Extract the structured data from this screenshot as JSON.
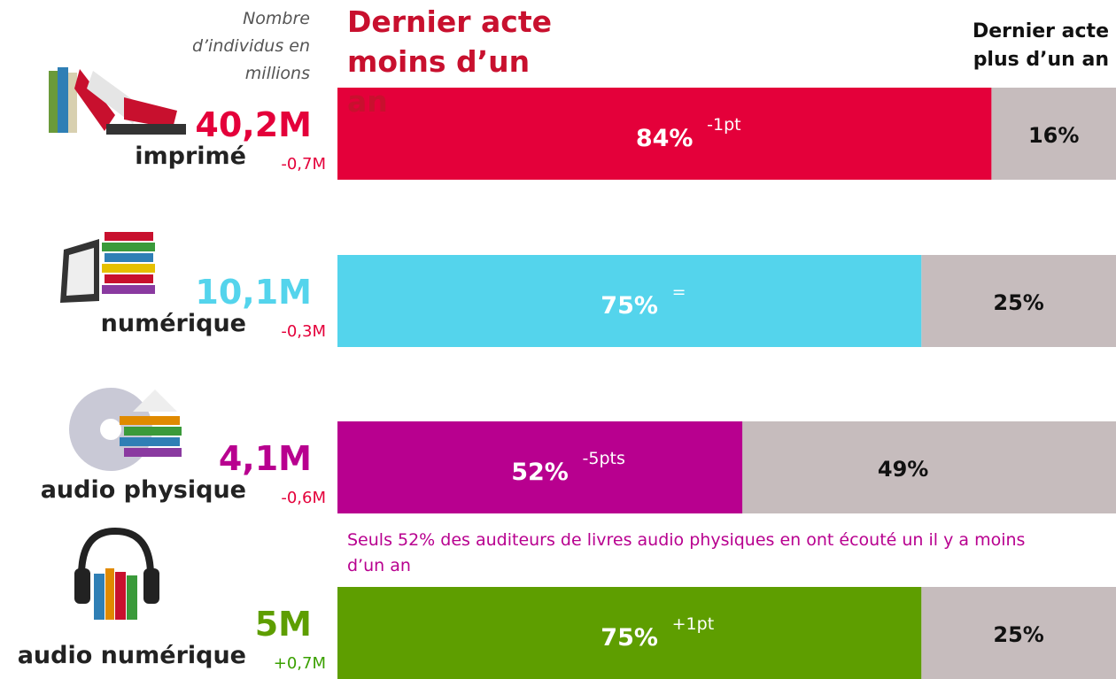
{
  "chart_data": {
    "type": "bar",
    "orientation": "horizontal",
    "stacked": true,
    "subtitle": "Nombre d’individus en millions",
    "categories": [
      "imprimé",
      "numérique",
      "audio physique",
      "audio numérique"
    ],
    "totals": [
      {
        "value": 40.2,
        "label": "40,2M"
      },
      {
        "value": 10.1,
        "label": "10,1M"
      },
      {
        "value": 4.1,
        "label": "4,1M"
      },
      {
        "value": 5,
        "label": "5M"
      }
    ],
    "total_changes": [
      {
        "value": -0.7,
        "label": "-0,7M"
      },
      {
        "value": -0.3,
        "label": "-0,3M"
      },
      {
        "value": -0.6,
        "label": "-0,6M"
      },
      {
        "value": 0.7,
        "label": "+0,7M"
      }
    ],
    "series": [
      {
        "name": "Dernier acte moins d’un an",
        "color": "#e4003a",
        "colors": [
          "#e4003a",
          "#54d4ec",
          "#b8008f",
          "#5e9e00"
        ],
        "values": [
          84,
          75,
          52,
          75
        ],
        "value_labels": [
          "84%",
          "75%",
          "52%",
          "75%"
        ],
        "changes": [
          {
            "value": -1,
            "label": "-1pt"
          },
          {
            "value": 0,
            "label": "="
          },
          {
            "value": -5,
            "label": "-5pts"
          },
          {
            "value": 1,
            "label": "+1pt"
          }
        ]
      },
      {
        "name": "Dernier acte plus d’un an",
        "color": "#c6bcbd",
        "values": [
          16,
          25,
          49,
          25
        ],
        "value_labels": [
          "16%",
          "25%",
          "49%",
          "25%"
        ]
      }
    ],
    "xlim": [
      0,
      100
    ],
    "annotation": "Seuls 52% des auditeurs de livres audio physiques en ont écouté un il y a moins d’un an"
  }
}
